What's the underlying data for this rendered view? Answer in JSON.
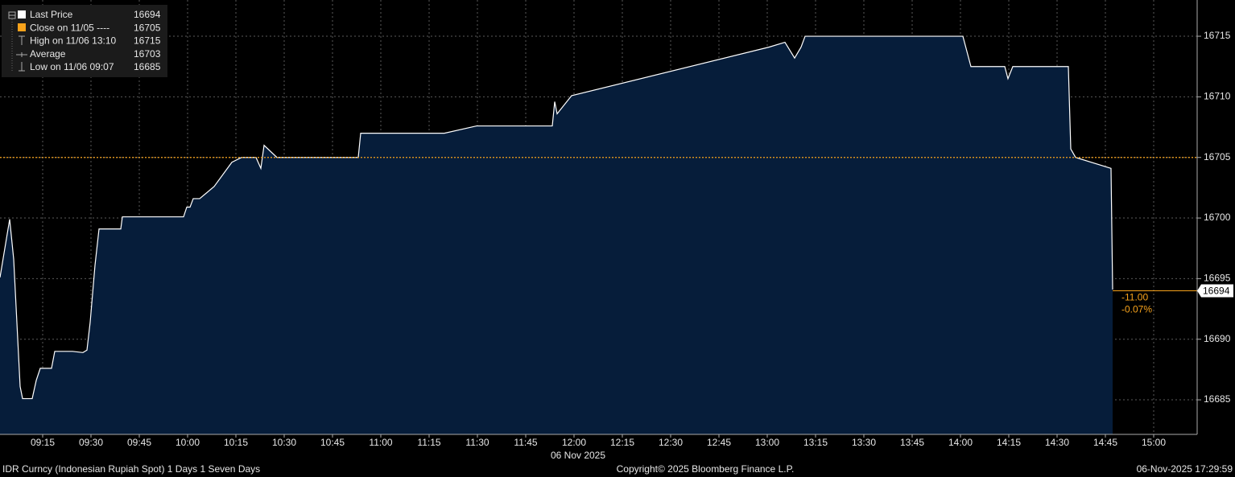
{
  "chart_data": {
    "type": "area",
    "series": [
      {
        "name": "Last Price",
        "color": "#ffffff",
        "fill": "#061d3a",
        "x": [
          541.75,
          544.75,
          546,
          548,
          548.75,
          551.75,
          553,
          554.25,
          557.75,
          558.75,
          564.25,
          567.5,
          568.75,
          569.75,
          571.25,
          572.5,
          579.25,
          579.75,
          598.75,
          599.75,
          600.75,
          601.75,
          603.75,
          608.25,
          613.75,
          616.75,
          621.25,
          622.75,
          623.75,
          627.75,
          653,
          653.75,
          679.75,
          689.75,
          713.25,
          714,
          714.75,
          719.25,
          780.5,
          785.5,
          788.5,
          790.5,
          791.75,
          840.75,
          843.25,
          853.75,
          854.75,
          856.25,
          873.5,
          874.25,
          875.75,
          886.75,
          887.25
        ],
        "values": [
          16695.1,
          16699.9,
          16696.6,
          16686.1,
          16685.1,
          16685.1,
          16686.6,
          16687.6,
          16687.6,
          16689,
          16689,
          16688.9,
          16689.1,
          16691.4,
          16696.1,
          16699.1,
          16699.1,
          16700.1,
          16700.1,
          16700.9,
          16700.9,
          16701.6,
          16701.6,
          16702.6,
          16704.6,
          16705,
          16705,
          16704.1,
          16706,
          16705,
          16705,
          16707,
          16707,
          16707.6,
          16707.6,
          16709.6,
          16708.6,
          16710.1,
          16714.1,
          16714.5,
          16713.2,
          16714.1,
          16715,
          16715,
          16712.5,
          16712.5,
          16711.5,
          16712.5,
          16712.5,
          16705.7,
          16705,
          16704.1,
          16694.1
        ]
      }
    ],
    "legend": [
      {
        "name": "Last Price",
        "value": 16694
      },
      {
        "name": "Close on 11/05 ----",
        "value": 16705
      },
      {
        "name": "High on 11/06 13:10",
        "value": 16715
      },
      {
        "name": "Average",
        "value": 16703
      },
      {
        "name": "Low on 11/06 09:07",
        "value": 16685
      }
    ],
    "close_color": "#f7a21b",
    "change": {
      "value": -11,
      "label": "-11.00"
    },
    "change_pct": {
      "value": -0.07,
      "label": "-0.07%"
    },
    "xlim": [
      541.75,
      913.5
    ],
    "xticks": [
      {
        "value": 555,
        "label": "09:15"
      },
      {
        "value": 570,
        "label": "09:30"
      },
      {
        "value": 585,
        "label": "09:45"
      },
      {
        "value": 600,
        "label": "10:00"
      },
      {
        "value": 615,
        "label": "10:15"
      },
      {
        "value": 630,
        "label": "10:30"
      },
      {
        "value": 645,
        "label": "10:45"
      },
      {
        "value": 660,
        "label": "11:00"
      },
      {
        "value": 675,
        "label": "11:15"
      },
      {
        "value": 690,
        "label": "11:30"
      },
      {
        "value": 705,
        "label": "11:45"
      },
      {
        "value": 720,
        "label": "12:00"
      },
      {
        "value": 735,
        "label": "12:15"
      },
      {
        "value": 750,
        "label": "12:30"
      },
      {
        "value": 765,
        "label": "12:45"
      },
      {
        "value": 780,
        "label": "13:00"
      },
      {
        "value": 795,
        "label": "13:15"
      },
      {
        "value": 810,
        "label": "13:30"
      },
      {
        "value": 825,
        "label": "13:45"
      },
      {
        "value": 840,
        "label": "14:00"
      },
      {
        "value": 855,
        "label": "14:15"
      },
      {
        "value": 870,
        "label": "14:30"
      },
      {
        "value": 885,
        "label": "14:45"
      },
      {
        "value": 900,
        "label": "15:00"
      }
    ],
    "xlabel": "06 Nov 2025",
    "ylim": [
      16682.15,
      16717.99
    ],
    "yticks": [
      16685,
      16690,
      16695,
      16700,
      16705,
      16710,
      16715
    ],
    "grid": true,
    "footer_left": "IDR Curncy (Indonesian Rupiah Spot) 1 Days 1 Seven Days",
    "footer_center": "Copyright© 2025 Bloomberg Finance L.P.",
    "footer_right": "06-Nov-2025 17:29:59"
  }
}
